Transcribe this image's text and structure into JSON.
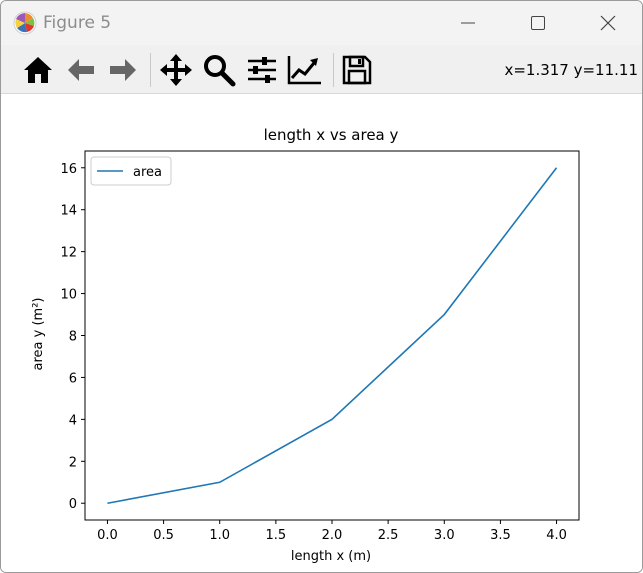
{
  "window": {
    "title": "Figure 5"
  },
  "toolbar": {
    "buttons": [
      {
        "name": "home",
        "icon": "home-icon"
      },
      {
        "name": "back",
        "icon": "arrow-left-icon"
      },
      {
        "name": "forward",
        "icon": "arrow-right-icon"
      },
      {
        "name": "pan",
        "icon": "move-icon"
      },
      {
        "name": "zoom",
        "icon": "magnifier-icon"
      },
      {
        "name": "configure-subplots",
        "icon": "sliders-icon"
      },
      {
        "name": "edit-axes",
        "icon": "line-chart-icon"
      },
      {
        "name": "save",
        "icon": "floppy-disk-icon"
      }
    ],
    "coords": "x=1.317 y=11.11"
  },
  "chart_data": {
    "type": "line",
    "title": "length x vs area y",
    "xlabel": "length x (m)",
    "ylabel": "area y (m²)",
    "xlim": [
      -0.2,
      4.2
    ],
    "ylim": [
      -0.8,
      16.8
    ],
    "xticks": [
      "0.0",
      "0.5",
      "1.0",
      "1.5",
      "2.0",
      "2.5",
      "3.0",
      "3.5",
      "4.0"
    ],
    "yticks": [
      "0",
      "2",
      "4",
      "6",
      "8",
      "10",
      "12",
      "14",
      "16"
    ],
    "grid": false,
    "legend_position": "upper left",
    "series": [
      {
        "name": "area",
        "color": "#1f77b4",
        "x": [
          0,
          1,
          2,
          3,
          4
        ],
        "y": [
          0,
          1,
          4,
          9,
          16
        ]
      }
    ]
  }
}
